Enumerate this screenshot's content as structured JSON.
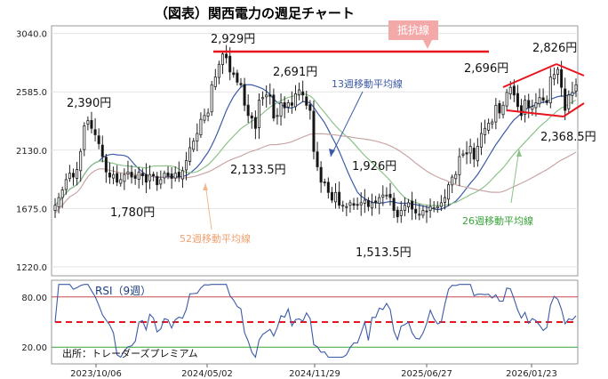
{
  "title": "（図表）関西電力の週足チャート",
  "source": "出所：トレーダーズプレミアム",
  "resistance_label": "抵抗線",
  "colors": {
    "up": "#2b2b2b",
    "down": "#111111",
    "ma13": "#3c5aa6",
    "ma26": "#8cc28a",
    "ma52": "#c9a6a6",
    "resistance": "#e8141e",
    "rsi": "#3c5aa6",
    "rsi_band": "#e8141e"
  },
  "chart_data": [
    {
      "type": "candlestick",
      "title": "（図表）関西電力の週足チャート",
      "ylim": [
        1150,
        3100
      ],
      "yticks": [
        "3040.0",
        "2585.0",
        "2130.0",
        "1675.0",
        "1220.0"
      ],
      "x_tick_labels": [
        "2023/10/06",
        "2024/05/02",
        "2024/11/29",
        "2025/06/27",
        "2026/01/23"
      ],
      "close": [
        1700,
        1760,
        1820,
        1900,
        1950,
        1920,
        1980,
        2120,
        2320,
        2360,
        2300,
        2250,
        2180,
        2080,
        1960,
        1920,
        1940,
        1880,
        1900,
        1940,
        1960,
        1920,
        1910,
        1960,
        1930,
        1880,
        1940,
        1930,
        1860,
        1900,
        1950,
        1930,
        1910,
        1950,
        1920,
        1970,
        2050,
        2150,
        2200,
        2260,
        2370,
        2400,
        2420,
        2640,
        2700,
        2800,
        2880,
        2850,
        2740,
        2720,
        2660,
        2640,
        2480,
        2400,
        2380,
        2300,
        2520,
        2540,
        2560,
        2550,
        2380,
        2400,
        2500,
        2460,
        2500,
        2480,
        2570,
        2600,
        2560,
        2480,
        2440,
        2120,
        2000,
        1880,
        1880,
        1800,
        1740,
        1800,
        1700,
        1700,
        1690,
        1720,
        1700,
        1700,
        1720,
        1740,
        1690,
        1720,
        1720,
        1760,
        1780,
        1780,
        1760,
        1660,
        1610,
        1660,
        1700,
        1720,
        1670,
        1640,
        1630,
        1660,
        1650,
        1690,
        1680,
        1690,
        1720,
        1760,
        1860,
        1920,
        1940,
        2080,
        2100,
        2100,
        2160,
        2060,
        2160,
        2260,
        2300,
        2340,
        2350,
        2480,
        2420,
        2480,
        2580,
        2620,
        2560,
        2470,
        2400,
        2520,
        2460,
        2470,
        2500,
        2540,
        2520,
        2500,
        2700,
        2720,
        2760,
        2620,
        2440,
        2560,
        2580,
        2640
      ],
      "annotations": [
        "2,929円",
        "2,826円",
        "2,691円",
        "2,696円",
        "2,390円",
        "2,368.5円",
        "2,133.5円",
        "1,926円",
        "1,780円",
        "1,513.5円"
      ],
      "series": [
        {
          "name": "13週移動平均線"
        },
        {
          "name": "26週移動平均線"
        },
        {
          "name": "52週移動平均線"
        }
      ],
      "resistance_line": 2929
    },
    {
      "type": "line",
      "title": "RSI（9週）",
      "ylim": [
        0,
        100
      ],
      "yticks": [
        "80.00",
        "20.00"
      ],
      "bands": [
        80,
        20
      ],
      "midline": 50
    }
  ]
}
